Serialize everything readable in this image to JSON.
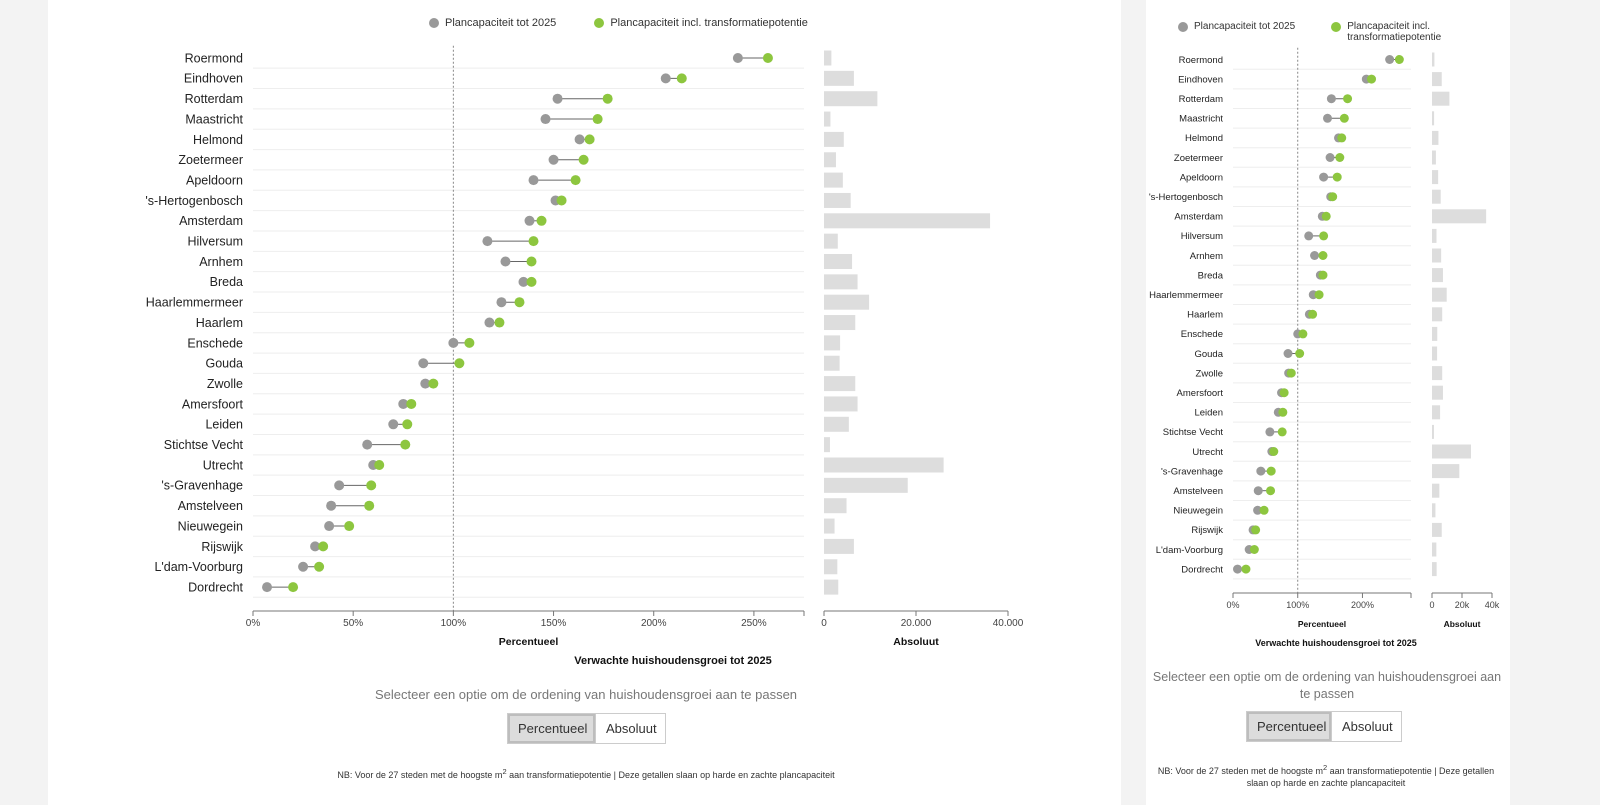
{
  "legend": {
    "series_a": "Plancapaciteit tot 2025",
    "series_b": "Plancapaciteit incl. transformatiepotentie"
  },
  "colors": {
    "series_a": "#999999",
    "series_b": "#8dc63f",
    "bar": "#dddddd"
  },
  "chart_data": [
    {
      "type": "dot-range",
      "title": "Verwachte huishoudensgroei tot 2025",
      "xlabel": "Percentueel",
      "xlim": [
        0,
        275
      ],
      "xticks": [
        "0%",
        "50%",
        "100%",
        "150%",
        "200%",
        "250%"
      ],
      "reference_line": 100,
      "categories": [
        "Roermond",
        "Eindhoven",
        "Rotterdam",
        "Maastricht",
        "Helmond",
        "Zoetermeer",
        "Apeldoorn",
        "'s-Hertogenbosch",
        "Amsterdam",
        "Hilversum",
        "Arnhem",
        "Breda",
        "Haarlemmermeer",
        "Haarlem",
        "Enschede",
        "Gouda",
        "Zwolle",
        "Amersfoort",
        "Leiden",
        "Stichtse Vecht",
        "Utrecht",
        "'s-Gravenhage",
        "Amstelveen",
        "Nieuwegein",
        "Rijswijk",
        "L'dam-Voorburg",
        "Dordrecht"
      ],
      "series": [
        {
          "name": "Plancapaciteit tot 2025",
          "values": [
            242,
            206,
            152,
            146,
            163,
            150,
            140,
            151,
            138,
            117,
            126,
            135,
            124,
            118,
            100,
            85,
            86,
            75,
            70,
            57,
            60,
            43,
            39,
            38,
            31,
            25,
            7
          ]
        },
        {
          "name": "Plancapaciteit incl. transformatiepotentie",
          "values": [
            257,
            214,
            177,
            172,
            168,
            165,
            161,
            154,
            144,
            140,
            139,
            139,
            133,
            123,
            108,
            103,
            90,
            79,
            77,
            76,
            63,
            59,
            58,
            48,
            35,
            33,
            20
          ]
        }
      ]
    },
    {
      "type": "bar",
      "title": "Verwachte huishoudensgroei tot 2025",
      "xlabel": "Absoluut",
      "xlim": [
        0,
        40000
      ],
      "xticks": [
        "0",
        "20.000",
        "40.000"
      ],
      "categories": [
        "Roermond",
        "Eindhoven",
        "Rotterdam",
        "Maastricht",
        "Helmond",
        "Zoetermeer",
        "Apeldoorn",
        "'s-Hertogenbosch",
        "Amsterdam",
        "Hilversum",
        "Arnhem",
        "Breda",
        "Haarlemmermeer",
        "Haarlem",
        "Enschede",
        "Gouda",
        "Zwolle",
        "Amersfoort",
        "Leiden",
        "Stichtse Vecht",
        "Utrecht",
        "'s-Gravenhage",
        "Amstelveen",
        "Nieuwegein",
        "Rijswijk",
        "L'dam-Voorburg",
        "Dordrecht"
      ],
      "values": [
        1600,
        6500,
        11600,
        1400,
        4300,
        2600,
        4100,
        5800,
        36100,
        3000,
        6100,
        7300,
        9800,
        6800,
        3500,
        3400,
        6800,
        7300,
        5400,
        1300,
        26000,
        18200,
        4900,
        2300,
        6500,
        2900,
        3100
      ]
    }
  ],
  "narrow": {
    "xticks_pct": [
      "0%",
      "100%",
      "200%"
    ],
    "xticks_abs": [
      "0",
      "20k",
      "40k"
    ]
  },
  "controls": {
    "prompt": "Selecteer een optie om de ordening van huishoudensgroei aan te passen",
    "options": [
      "Percentueel",
      "Absoluut"
    ],
    "selected": "Percentueel"
  },
  "note": {
    "prefix": "NB: Voor de 27 steden met de hoogste m",
    "sup": "2",
    "suffix": " aan transformatiepotentie | Deze getallen slaan op harde en zachte plancapaciteit"
  }
}
